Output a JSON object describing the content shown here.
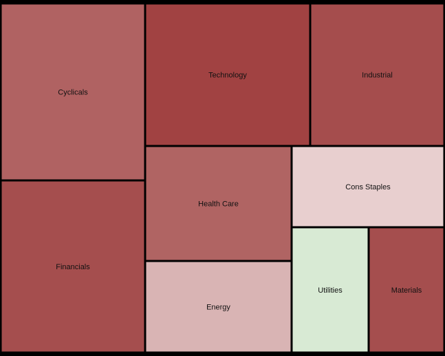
{
  "chart_data": {
    "type": "treemap",
    "title": "",
    "cells": [
      {
        "label": "Cyclicals",
        "color": "#b06262"
      },
      {
        "label": "Financials",
        "color": "#a54e4e"
      },
      {
        "label": "Technology",
        "color": "#a14242"
      },
      {
        "label": "Industrial",
        "color": "#a54d4d"
      },
      {
        "label": "Health Care",
        "color": "#b06463"
      },
      {
        "label": "Energy",
        "color": "#d9b4b4"
      },
      {
        "label": "Cons Staples",
        "color": "#e8cfcf"
      },
      {
        "label": "Utilities",
        "color": "#d8ead4"
      },
      {
        "label": "Materials",
        "color": "#a54e4e"
      }
    ]
  }
}
